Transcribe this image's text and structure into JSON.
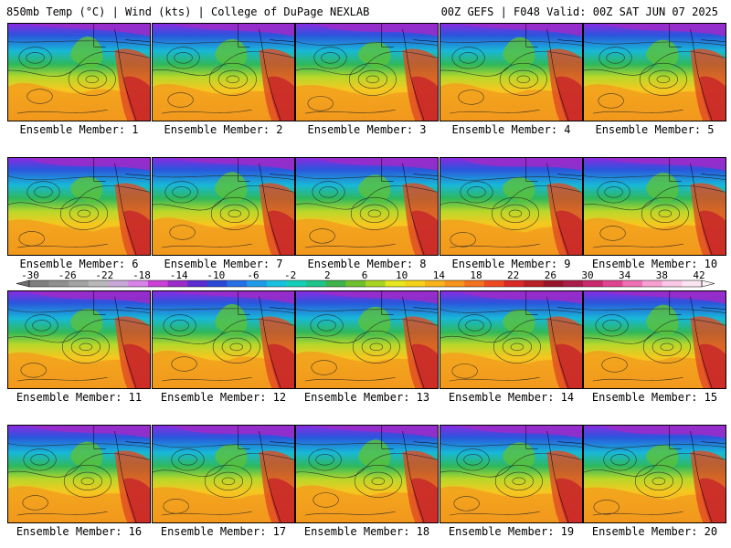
{
  "header": {
    "left": "850mb Temp (°C) | Wind (kts) | College of DuPage NEXLAB",
    "right": "00Z GEFS | F048 Valid: 00Z SAT JUN 07 2025"
  },
  "panels": [
    {
      "label": "Ensemble Member: 1"
    },
    {
      "label": "Ensemble Member: 2"
    },
    {
      "label": "Ensemble Member: 3"
    },
    {
      "label": "Ensemble Member: 4"
    },
    {
      "label": "Ensemble Member: 5"
    },
    {
      "label": "Ensemble Member: 6"
    },
    {
      "label": "Ensemble Member: 7"
    },
    {
      "label": "Ensemble Member: 8"
    },
    {
      "label": "Ensemble Member: 9"
    },
    {
      "label": "Ensemble Member: 10"
    },
    {
      "label": "Ensemble Member: 11"
    },
    {
      "label": "Ensemble Member: 12"
    },
    {
      "label": "Ensemble Member: 13"
    },
    {
      "label": "Ensemble Member: 14"
    },
    {
      "label": "Ensemble Member: 15"
    },
    {
      "label": "Ensemble Member: 16"
    },
    {
      "label": "Ensemble Member: 17"
    },
    {
      "label": "Ensemble Member: 18"
    },
    {
      "label": "Ensemble Member: 19"
    },
    {
      "label": "Ensemble Member: 20"
    }
  ],
  "colorbar": {
    "tick_labels": [
      "-30",
      "-26",
      "-22",
      "-18",
      "-14",
      "-10",
      "-6",
      "-2",
      "2",
      "6",
      "10",
      "14",
      "18",
      "22",
      "26",
      "30",
      "34",
      "38",
      "42"
    ],
    "colors": [
      "#7f7f7f",
      "#8f8f8f",
      "#a3a3a3",
      "#b8b8b8",
      "#c9a6d8",
      "#d783e8",
      "#c93fd8",
      "#9b2bc8",
      "#5a2bd0",
      "#2a48d8",
      "#2470e6",
      "#1d9ae8",
      "#18c0e0",
      "#15d0b8",
      "#1fc488",
      "#3db34a",
      "#6ec12d",
      "#a8d421",
      "#e6e61e",
      "#f5d219",
      "#f7b41a",
      "#f7941c",
      "#f4711f",
      "#ee4a22",
      "#d92a25",
      "#b81f26",
      "#96152a",
      "#a81e48",
      "#c92a6e",
      "#e04490",
      "#ee70b4",
      "#f6a0d2",
      "#fbc8e6",
      "#fde4f2"
    ]
  }
}
